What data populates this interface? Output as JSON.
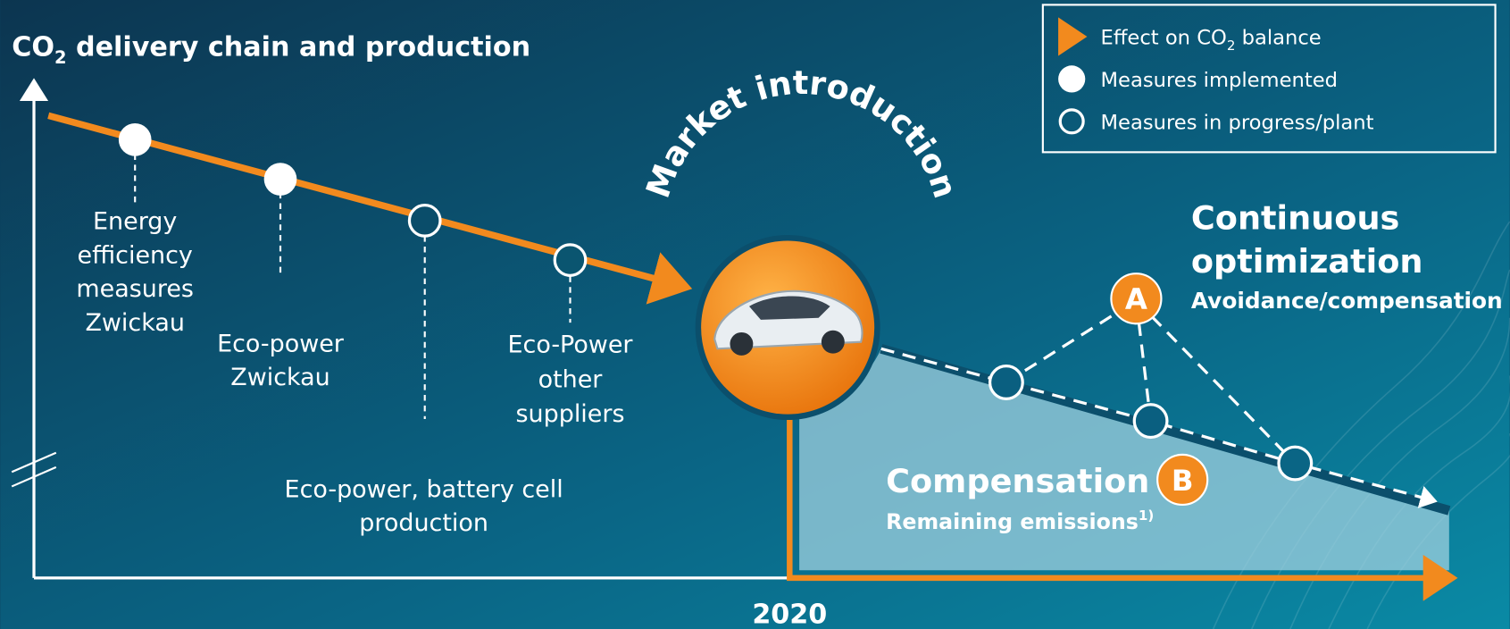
{
  "title": {
    "prefix": "CO",
    "subscript": "2",
    "suffix": " delivery chain and production"
  },
  "legend": [
    {
      "prefix": "Effect on CO",
      "subscript": "2",
      "suffix": " balance"
    },
    {
      "label": "Measures implemented"
    },
    {
      "label": "Measures in progress/plant"
    }
  ],
  "measures": [
    {
      "lines": [
        "Energy",
        "efficiency",
        "measures",
        "Zwickau"
      ]
    },
    {
      "lines": [
        "Eco-power",
        "Zwickau"
      ]
    },
    {
      "lines": [
        "Eco-power, battery cell",
        "production"
      ]
    },
    {
      "lines": [
        "Eco-Power",
        "other",
        "suppliers"
      ]
    }
  ],
  "market_introduction": "Market introduction",
  "optimization": {
    "title_lines": [
      "Continuous",
      "optimization"
    ],
    "subtitle": "Avoidance/compensation",
    "marker": "A"
  },
  "compensation": {
    "title": "Compensation",
    "subtitle": "Remaining emissions",
    "footnote": "1)",
    "marker": "B"
  },
  "year": "2020"
}
